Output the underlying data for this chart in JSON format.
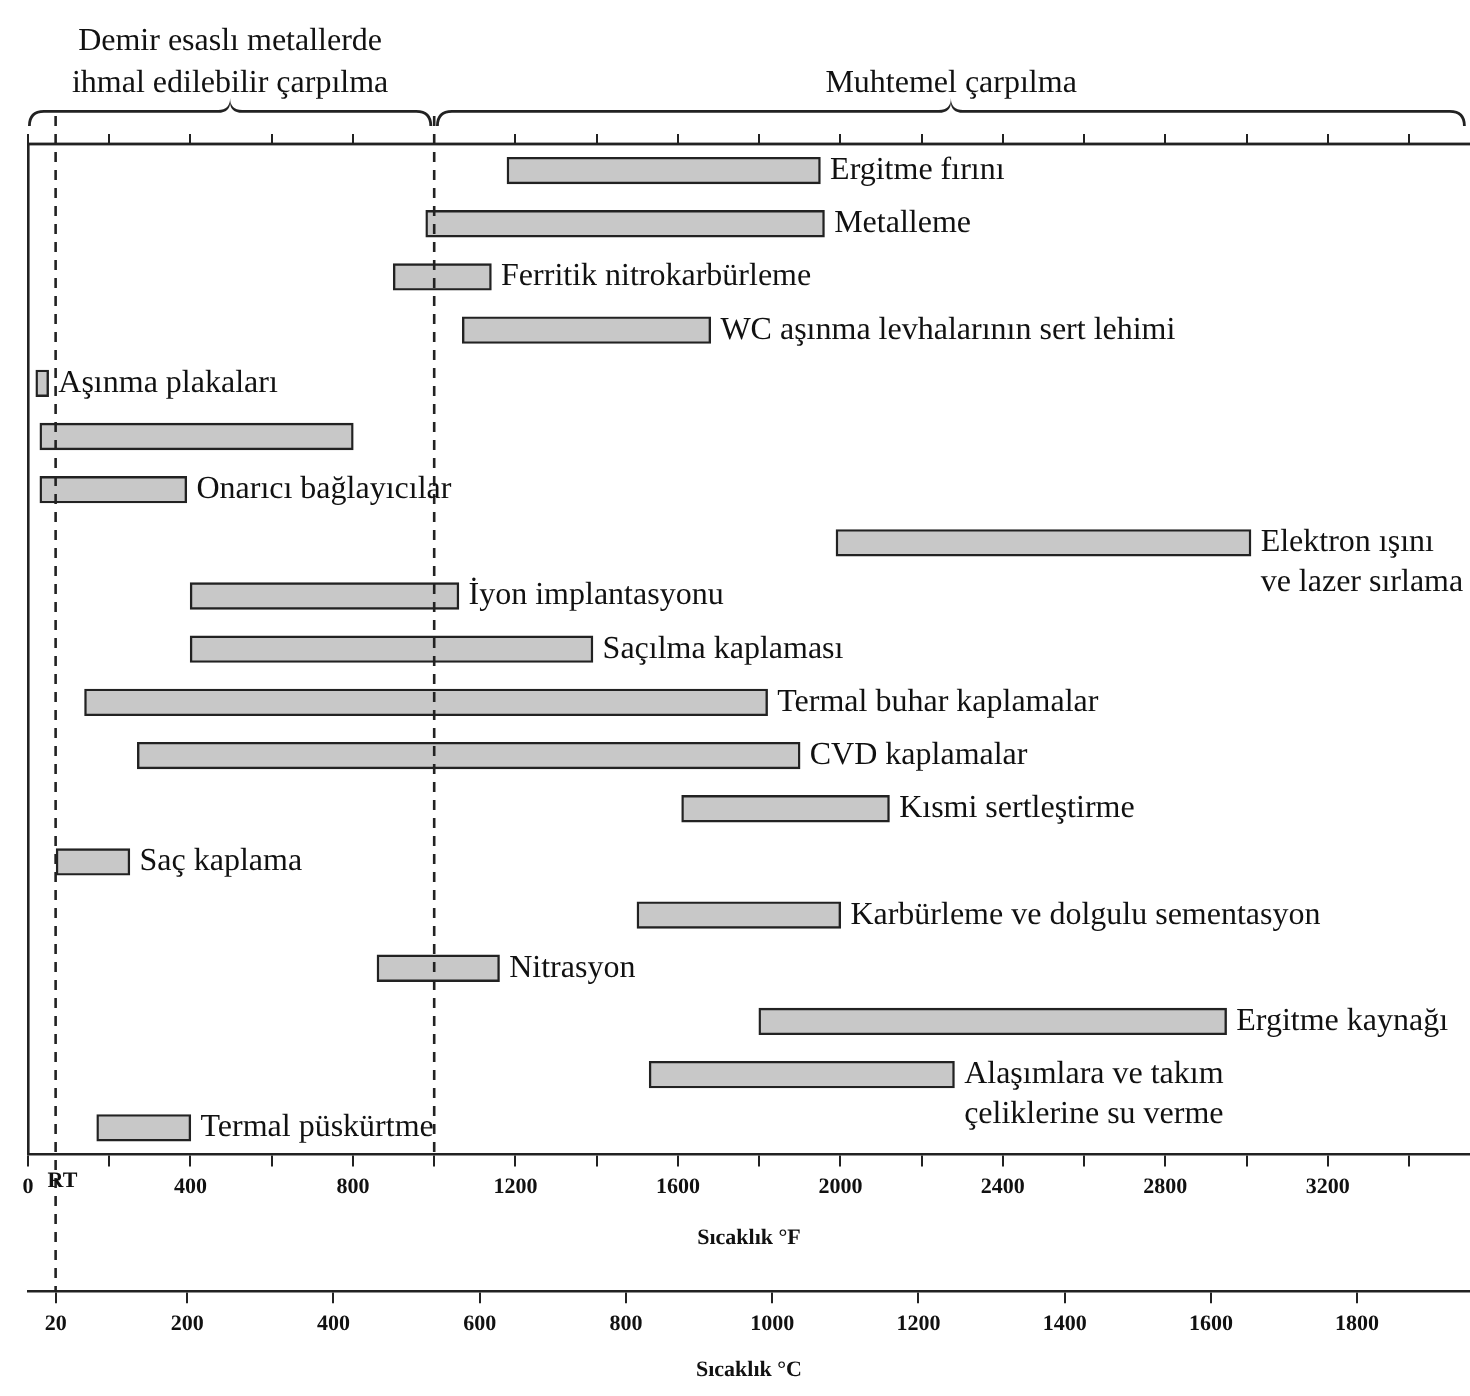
{
  "chart_data": {
    "type": "bar",
    "orientation": "horizontal",
    "xlabel": "Sıcaklık °F",
    "x2label": "Sıcaklık °C",
    "categories": [
      "Ergitme fırını",
      "Metalleme",
      "Ferritik nitrokarbürleme",
      "WC aşınma levhalarının sert lehimi",
      "Aşınma plakaları",
      null,
      "Onarıcı bağlayıcılar",
      "Elektron ışını ve lazer sırlama",
      "İyon implantasyonu",
      "Saçılma kaplaması",
      "Termal buhar kaplamalar",
      "CVD kaplamalar",
      "Kısmi sertleştirme",
      "Saç kaplama",
      "Karbürleme ve dolgulu sementasyon",
      "Nitrasyon",
      "Ergitme kaynağı",
      "Alaşımlara ve takım çeliklerine su verme",
      "Termal püskürtme"
    ],
    "base": [
      1180,
      980,
      900,
      1070,
      20,
      30,
      30,
      1990,
      400,
      400,
      140,
      270,
      1610,
      70,
      1500,
      860,
      1800,
      1530,
      170
    ],
    "values": [
      770,
      980,
      240,
      610,
      30,
      770,
      360,
      1020,
      660,
      990,
      1680,
      1630,
      510,
      180,
      500,
      300,
      1150,
      750,
      230
    ],
    "color": "#c8c8c8",
    "xlim": [
      0,
      3550
    ],
    "xticks": [
      0,
      {
        "value": 200,
        "label": null
      },
      400,
      {
        "value": 600,
        "label": null
      },
      800,
      {
        "value": 1000,
        "label": null
      },
      1200,
      {
        "value": 1400,
        "label": null
      },
      1600,
      {
        "value": 1800,
        "label": null
      },
      2000,
      {
        "value": 2200,
        "label": null
      },
      2400,
      {
        "value": 2600,
        "label": null
      },
      2800,
      {
        "value": 3000,
        "label": null
      },
      3200,
      {
        "value": 3400,
        "label": null
      }
    ],
    "x2lim": [
      -17.8,
      1954.4
    ],
    "x2ticks": [
      20,
      200,
      400,
      600,
      800,
      1000,
      1200,
      1400,
      1600,
      1800
    ],
    "ref_lines": [
      {
        "axis": "x",
        "value": 68,
        "label": "RT",
        "line_style": "dashed"
      },
      {
        "axis": "x",
        "value": 1000,
        "label": null,
        "line_style": "dashed"
      }
    ],
    "annotations": [
      "Demir esaslı metallerde ihmal edilebilir çarpılma",
      "Muhtemel çarpılma"
    ],
    "tick_labels": "x",
    "grid": false,
    "legend": false
  }
}
